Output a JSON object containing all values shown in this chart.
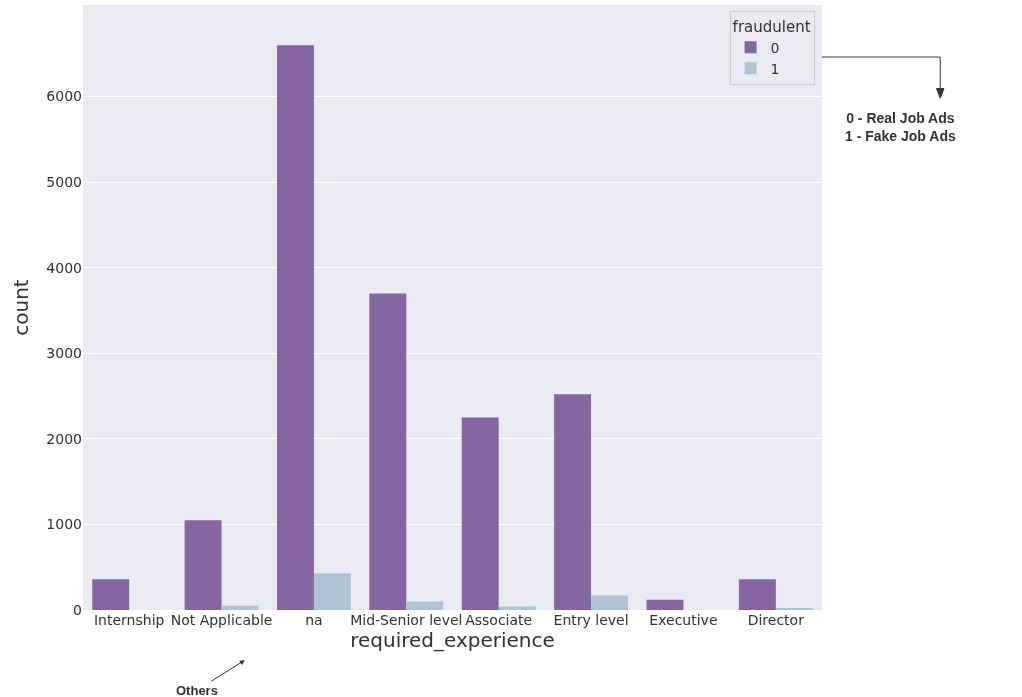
{
  "chart_data": {
    "type": "bar",
    "xlabel": "required_experience",
    "ylabel": "count",
    "legend_title": "fraudulent",
    "categories": [
      "Internship",
      "Not Applicable",
      "na",
      "Mid-Senior level",
      "Associate",
      "Entry level",
      "Executive",
      "Director"
    ],
    "series": [
      {
        "name": "0",
        "color": "#8467a0",
        "values": [
          360,
          1050,
          6600,
          3700,
          2250,
          2520,
          120,
          360
        ]
      },
      {
        "name": "1",
        "color": "#b1c2d5",
        "values": [
          0,
          50,
          430,
          100,
          40,
          170,
          0,
          20
        ]
      }
    ],
    "ylim": [
      0,
      7070
    ],
    "yticks": [
      0,
      1000,
      2000,
      3000,
      4000,
      5000,
      6000
    ],
    "grid": "y",
    "legend": "top right",
    "annotations": [
      "0 - Real Job Ads\n1 - Fake Job Ads",
      "Others"
    ]
  }
}
